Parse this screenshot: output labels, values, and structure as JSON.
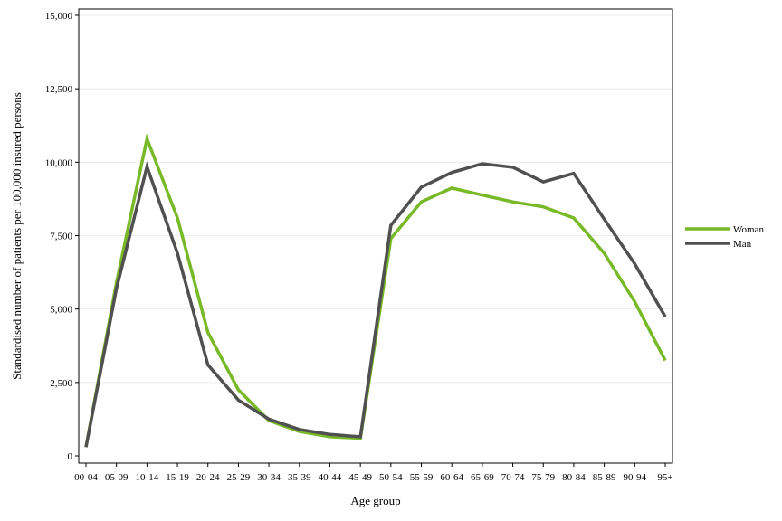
{
  "chart_data": {
    "type": "line",
    "title": "",
    "xlabel": "Age group",
    "ylabel": "Standardised number of patients per 100,000 insured persons",
    "categories": [
      "00-04",
      "05-09",
      "10-14",
      "15-19",
      "20-24",
      "25-29",
      "30-34",
      "35-39",
      "40-44",
      "45-49",
      "50-54",
      "55-59",
      "60-64",
      "65-69",
      "70-74",
      "75-79",
      "80-84",
      "85-89",
      "90-94",
      "95+"
    ],
    "series": [
      {
        "name": "Woman",
        "color": "#78b928",
        "values": [
          300,
          5900,
          10800,
          8100,
          4200,
          2250,
          1200,
          830,
          650,
          600,
          7400,
          8650,
          9120,
          8880,
          8650,
          8480,
          8100,
          6900,
          5250,
          3250
        ]
      },
      {
        "name": "Man",
        "color": "#505050",
        "values": [
          300,
          5700,
          9850,
          6900,
          3100,
          1900,
          1250,
          900,
          730,
          650,
          7850,
          9150,
          9650,
          9950,
          9830,
          9330,
          9620,
          8060,
          6540,
          4740
        ]
      }
    ],
    "ylim": [
      0,
      15000
    ],
    "yticks": [
      0,
      2500,
      5000,
      7500,
      10000,
      12500,
      15000
    ],
    "ytick_labels": [
      "0",
      "2,500",
      "5,000",
      "7,500",
      "10,000",
      "12,500",
      "15,000"
    ],
    "grid": "horizontal",
    "legend_position": "right"
  }
}
